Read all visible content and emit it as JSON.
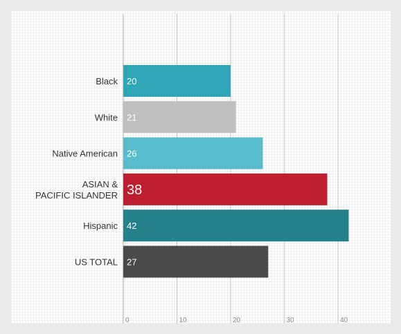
{
  "chart_data": {
    "type": "bar",
    "orientation": "horizontal",
    "categories": [
      "Black",
      "White",
      "Native American",
      "ASIAN & PACIFIC ISLANDER",
      "Hispanic",
      "US TOTAL"
    ],
    "category_lines": [
      [
        "Black"
      ],
      [
        "White"
      ],
      [
        "Native American"
      ],
      [
        "ASIAN &",
        "PACIFIC ISLANDER"
      ],
      [
        "Hispanic"
      ],
      [
        "US TOTAL"
      ]
    ],
    "values": [
      20,
      21,
      26,
      38,
      42,
      27
    ],
    "bar_colors": [
      "#2ea6b5",
      "#bfbfbf",
      "#57bccb",
      "#bf1e2e",
      "#248189",
      "#4a4a4a"
    ],
    "highlight_index": 3,
    "highlight_label_color": "#bf1e2e",
    "xlim": [
      0,
      50
    ],
    "xticks": [
      0,
      10,
      20,
      30,
      40
    ],
    "grid": true,
    "title": "",
    "xlabel": "",
    "ylabel": ""
  }
}
